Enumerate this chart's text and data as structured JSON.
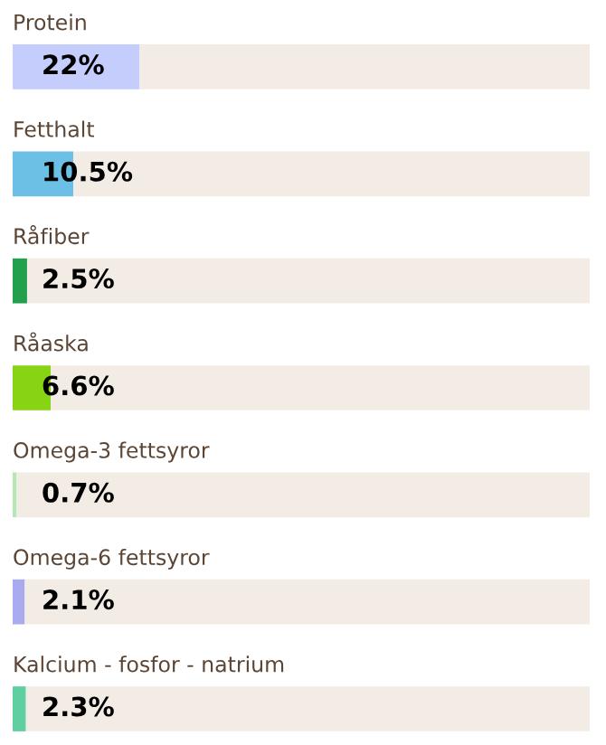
{
  "chart_data": {
    "type": "bar",
    "orientation": "horizontal",
    "stacked": true,
    "categories": [
      "Protein",
      "Fetthalt",
      "Råfiber",
      "Råaska",
      "Omega-3 fettsyror",
      "Omega-6 fettsyror",
      "Kalcium - fosfor - natrium"
    ],
    "series": [
      {
        "colors": [
          "#c5cdfc",
          "#6cc0e5",
          "#22a04b",
          "#86d414",
          "#b5e8b5",
          "#a9aaf0",
          "#5fcfa0"
        ],
        "values": [
          22,
          10.5,
          2.5,
          6.6,
          0.7,
          2.1,
          2.3
        ],
        "value_labels": [
          "22%",
          "10.5%",
          "2.5%",
          "6.6%",
          "0.7%",
          "2.1%",
          "2.3%"
        ]
      },
      {
        "color": "#f3ece5",
        "values": [
          78,
          89.5,
          97.5,
          93.4,
          99.3,
          97.9,
          97.7
        ]
      }
    ],
    "xlim": [
      0,
      100
    ]
  }
}
